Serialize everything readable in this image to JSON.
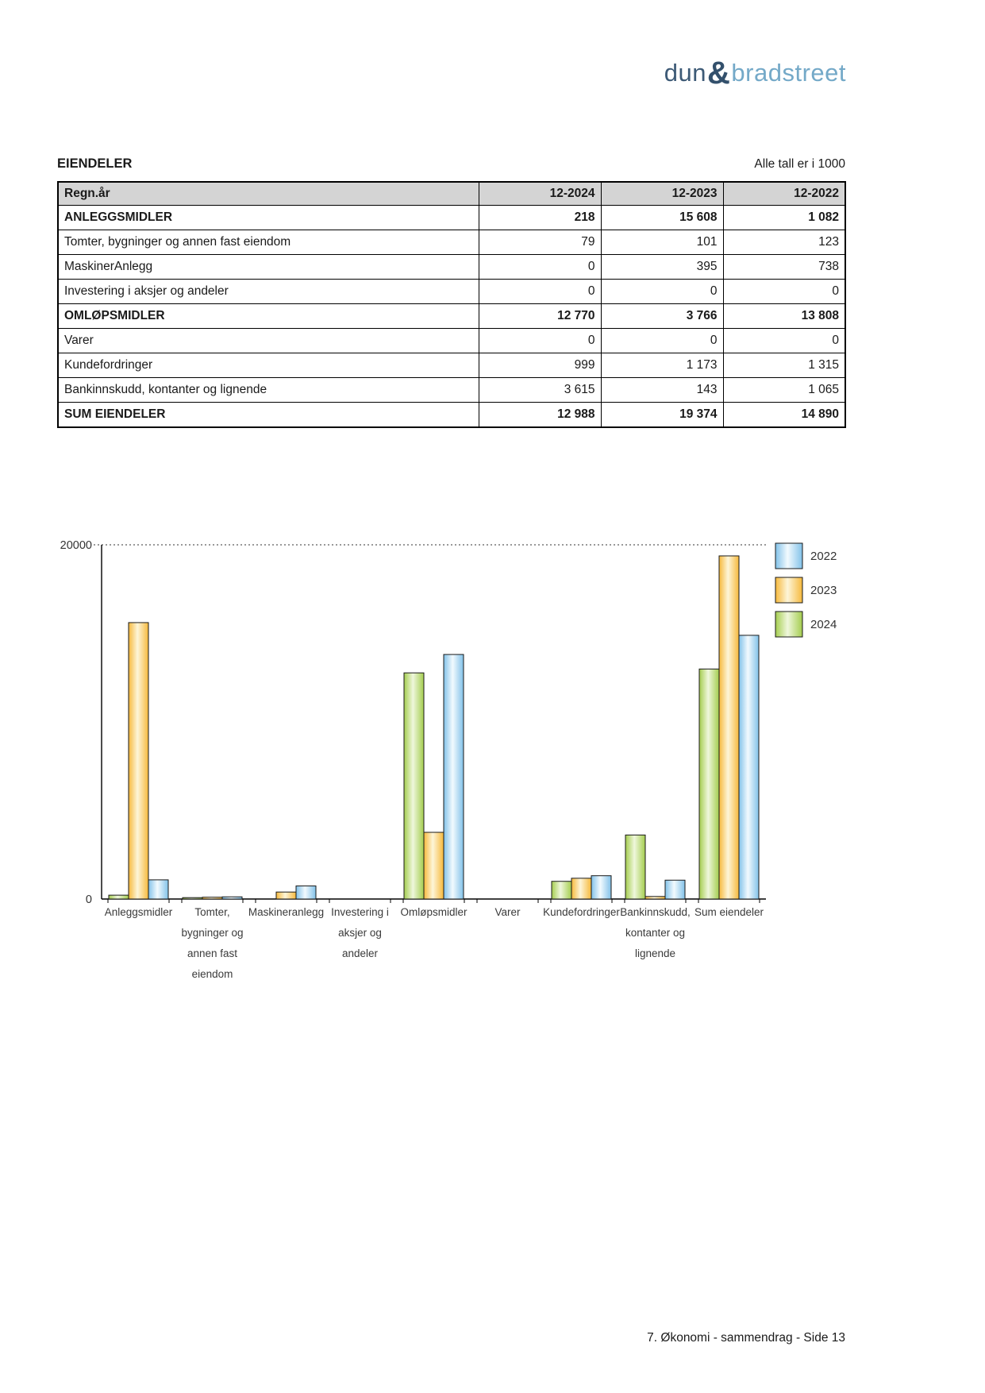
{
  "logo": {
    "part1": "dun",
    "amp": "&",
    "part2": "bradstreet",
    "color_dark": "#3d5a76",
    "color_amp": "#33506c",
    "color_light": "#74a9c8"
  },
  "section": {
    "title": "EIENDELER",
    "note": "Alle tall er i 1000"
  },
  "table": {
    "header_bg": "#d4d4d4",
    "header": {
      "label": "Regn.år",
      "cols": [
        "12-2024",
        "12-2023",
        "12-2022"
      ]
    },
    "rows": [
      {
        "label": "ANLEGGSMIDLER",
        "values": [
          "218",
          "15 608",
          "1 082"
        ],
        "bold": true
      },
      {
        "label": "Tomter, bygninger og annen fast eiendom",
        "values": [
          "79",
          "101",
          "123"
        ],
        "bold": false
      },
      {
        "label": "MaskinerAnlegg",
        "values": [
          "0",
          "395",
          "738"
        ],
        "bold": false
      },
      {
        "label": "Investering i aksjer og andeler",
        "values": [
          "0",
          "0",
          "0"
        ],
        "bold": false
      },
      {
        "label": "OMLØPSMIDLER",
        "values": [
          "12 770",
          "3 766",
          "13 808"
        ],
        "bold": true
      },
      {
        "label": "Varer",
        "values": [
          "0",
          "0",
          "0"
        ],
        "bold": false
      },
      {
        "label": "Kundefordringer",
        "values": [
          "999",
          "1 173",
          "1 315"
        ],
        "bold": false
      },
      {
        "label": "Bankinnskudd, kontanter og lignende",
        "values": [
          "3 615",
          "143",
          "1 065"
        ],
        "bold": false
      },
      {
        "label": "SUM EIENDELER",
        "values": [
          "12 988",
          "19 374",
          "14 890"
        ],
        "bold": true
      }
    ]
  },
  "chart_data": {
    "type": "bar",
    "title": "",
    "xlabel": "",
    "ylabel": "",
    "ylim": [
      0,
      20000
    ],
    "yticks": [
      {
        "value": 20000,
        "label": "20000"
      },
      {
        "value": 0,
        "label": "0"
      }
    ],
    "grid_top_dotted": true,
    "legend_position": "top-right",
    "categories": [
      [
        "Anleggsmidler"
      ],
      [
        "Tomter,",
        "bygninger og",
        "annen fast",
        "eiendom"
      ],
      [
        "Maskineranlegg"
      ],
      [
        "Investering i",
        "aksjer og",
        "andeler"
      ],
      [
        "Omløpsmidler"
      ],
      [
        "Varer"
      ],
      [
        "Kundefordringer"
      ],
      [
        "Bankinnskudd,",
        "kontanter og",
        "lignende"
      ],
      [
        "Sum eiendeler"
      ]
    ],
    "series": [
      {
        "name": "2022",
        "values": [
          1082,
          123,
          738,
          0,
          13808,
          0,
          1315,
          1065,
          14890
        ],
        "color_edge": "#82c2e9",
        "color_mid": "#f2fafe"
      },
      {
        "name": "2023",
        "values": [
          15608,
          101,
          395,
          0,
          3766,
          0,
          1173,
          143,
          19374
        ],
        "color_edge": "#f6b93c",
        "color_mid": "#fdf5d8"
      },
      {
        "name": "2024",
        "values": [
          218,
          79,
          0,
          0,
          12770,
          0,
          999,
          3615,
          12988
        ],
        "color_edge": "#a4cd4e",
        "color_mid": "#eff7dc"
      }
    ],
    "bar_draw_order": [
      "2024",
      "2023",
      "2022"
    ]
  },
  "footer": {
    "text": "7. Økonomi - sammendrag - Side 13"
  }
}
